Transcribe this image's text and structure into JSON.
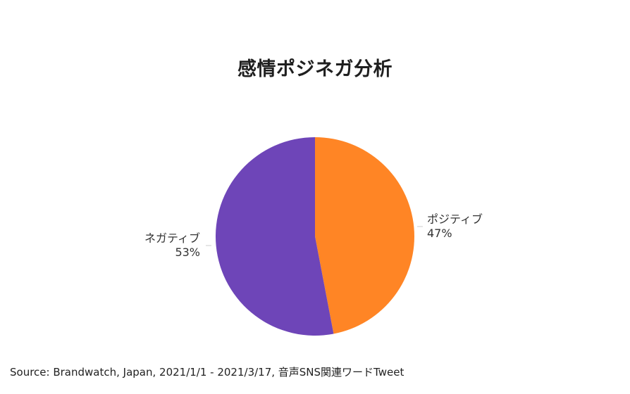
{
  "chart_data": {
    "type": "pie",
    "title": "感情ポジネガ分析",
    "slices": [
      {
        "name": "ポジティブ",
        "value": 47,
        "label": "47%",
        "color": "#FF8525"
      },
      {
        "name": "ネガティブ",
        "value": 53,
        "label": "53%",
        "color": "#6E45B8"
      }
    ],
    "start_angle_deg": 0,
    "direction": "clockwise",
    "legend": "none"
  },
  "source": "Source: Brandwatch, Japan, 2021/1/1 - 2021/3/17, 音声SNS関連ワードTweet"
}
